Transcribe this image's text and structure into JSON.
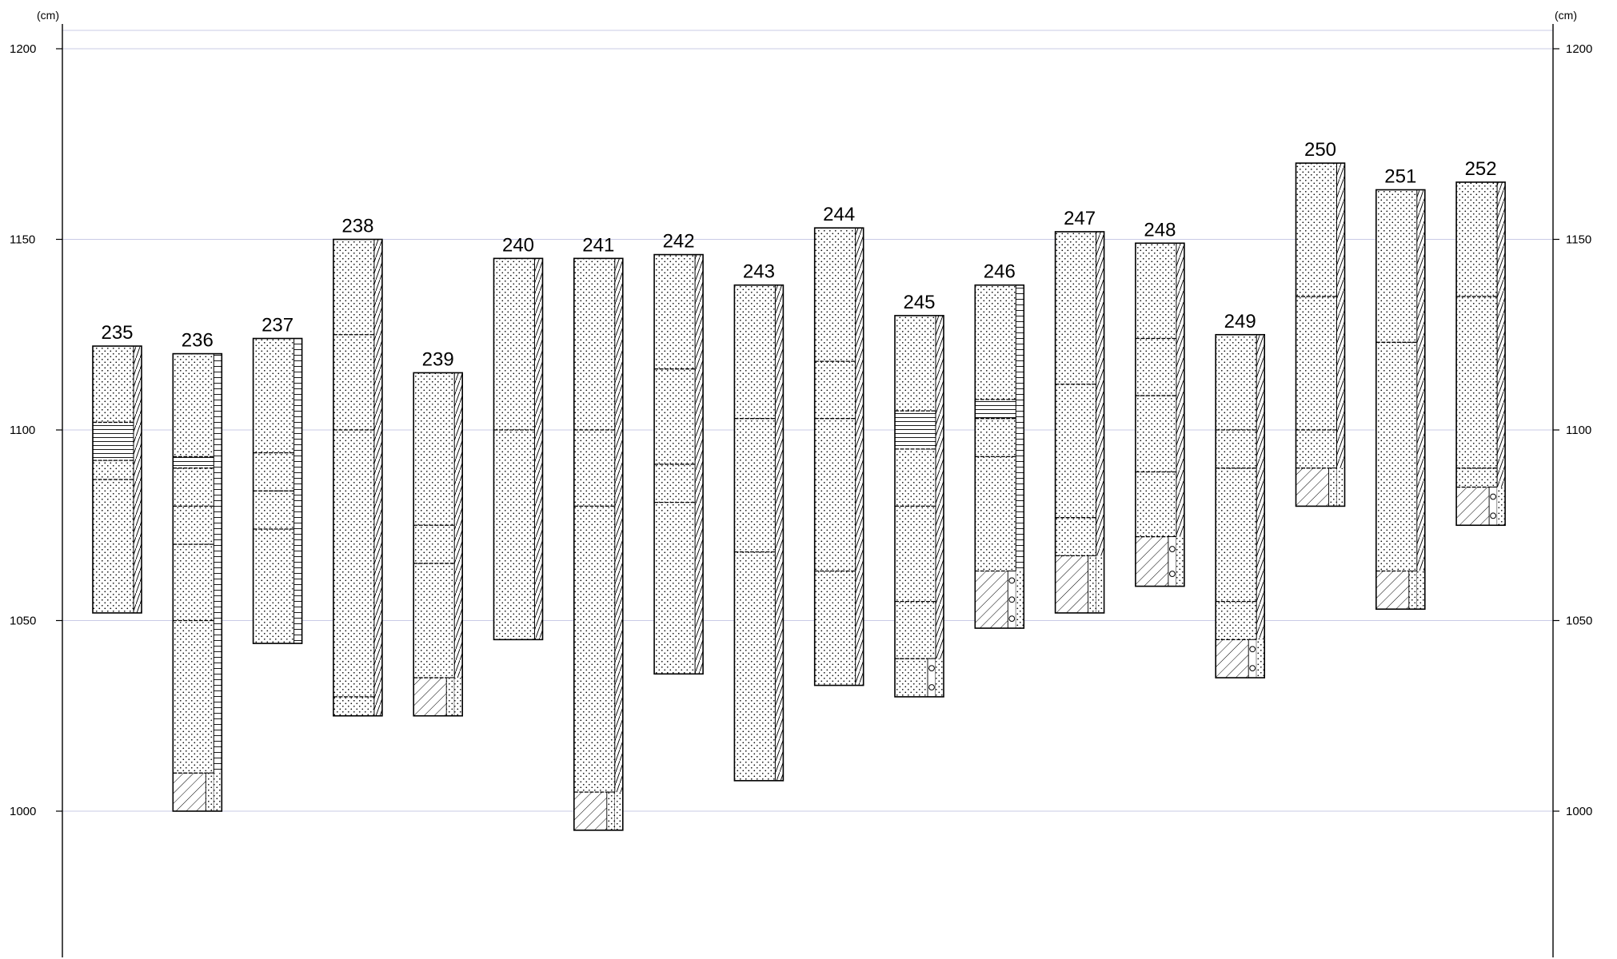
{
  "diagram": {
    "unit_left": "(cm)",
    "unit_right": "(cm)",
    "depth_range": [
      960,
      1205
    ],
    "ticks": [
      1200,
      1150,
      1100,
      1050,
      1000
    ],
    "colors": {
      "grid": "#c9cbe6",
      "axis": "#000000",
      "outline": "#000000",
      "background": "#ffffff"
    },
    "layer_patterns": [
      "fine-dots",
      "horizontal-lines",
      "diagonal-hatch",
      "circles"
    ],
    "cores": [
      {
        "label": "235",
        "top": 1122,
        "bottom": 1052,
        "side": "diagonal-hatch",
        "layers": [
          {
            "top": 1122,
            "bottom": 1102,
            "fill": "fine-dots"
          },
          {
            "top": 1102,
            "bottom": 1092,
            "fill": "horizontal-lines"
          },
          {
            "top": 1092,
            "bottom": 1087,
            "fill": "fine-dots",
            "band": 1087
          },
          {
            "top": 1087,
            "bottom": 1052,
            "fill": "fine-dots"
          }
        ]
      },
      {
        "label": "236",
        "top": 1120,
        "bottom": 1000,
        "side": "horizontal-lines",
        "layers": [
          {
            "top": 1120,
            "bottom": 1093,
            "fill": "fine-dots"
          },
          {
            "top": 1093,
            "bottom": 1090,
            "fill": "horizontal-lines"
          },
          {
            "top": 1090,
            "bottom": 1080,
            "fill": "fine-dots"
          },
          {
            "top": 1080,
            "bottom": 1070,
            "fill": "fine-dots"
          },
          {
            "top": 1070,
            "bottom": 1050,
            "fill": "fine-dots"
          },
          {
            "top": 1050,
            "bottom": 1010,
            "fill": "fine-dots"
          },
          {
            "top": 1010,
            "bottom": 1000,
            "fill": "diagonal-hatch"
          }
        ]
      },
      {
        "label": "237",
        "top": 1124,
        "bottom": 1044,
        "side": "horizontal-lines",
        "layers": [
          {
            "top": 1124,
            "bottom": 1094,
            "fill": "fine-dots"
          },
          {
            "top": 1094,
            "bottom": 1084,
            "fill": "fine-dots"
          },
          {
            "top": 1084,
            "bottom": 1074,
            "fill": "fine-dots"
          },
          {
            "top": 1074,
            "bottom": 1044,
            "fill": "fine-dots"
          }
        ]
      },
      {
        "label": "238",
        "top": 1150,
        "bottom": 1025,
        "side": "diagonal-hatch",
        "layers": [
          {
            "top": 1150,
            "bottom": 1125,
            "fill": "fine-dots"
          },
          {
            "top": 1125,
            "bottom": 1100,
            "fill": "fine-dots"
          },
          {
            "top": 1100,
            "bottom": 1030,
            "fill": "fine-dots"
          },
          {
            "top": 1030,
            "bottom": 1025,
            "fill": "fine-dots"
          }
        ]
      },
      {
        "label": "239",
        "top": 1115,
        "bottom": 1025,
        "side": "diagonal-hatch",
        "layers": [
          {
            "top": 1115,
            "bottom": 1075,
            "fill": "fine-dots"
          },
          {
            "top": 1075,
            "bottom": 1065,
            "fill": "fine-dots"
          },
          {
            "top": 1065,
            "bottom": 1035,
            "fill": "fine-dots"
          },
          {
            "top": 1035,
            "bottom": 1025,
            "fill": "diagonal-hatch"
          }
        ]
      },
      {
        "label": "240",
        "top": 1145,
        "bottom": 1045,
        "side": "diagonal-hatch",
        "layers": [
          {
            "top": 1145,
            "bottom": 1100,
            "fill": "fine-dots"
          },
          {
            "top": 1100,
            "bottom": 1045,
            "fill": "fine-dots"
          }
        ]
      },
      {
        "label": "241",
        "top": 1145,
        "bottom": 995,
        "side": "diagonal-hatch",
        "layers": [
          {
            "top": 1145,
            "bottom": 1100,
            "fill": "fine-dots"
          },
          {
            "top": 1100,
            "bottom": 1080,
            "fill": "fine-dots"
          },
          {
            "top": 1080,
            "bottom": 1005,
            "fill": "fine-dots"
          },
          {
            "top": 1005,
            "bottom": 995,
            "fill": "diagonal-hatch"
          }
        ]
      },
      {
        "label": "242",
        "top": 1146,
        "bottom": 1036,
        "side": "diagonal-hatch",
        "layers": [
          {
            "top": 1146,
            "bottom": 1116,
            "fill": "fine-dots"
          },
          {
            "top": 1116,
            "bottom": 1091,
            "fill": "fine-dots"
          },
          {
            "top": 1091,
            "bottom": 1081,
            "fill": "fine-dots"
          },
          {
            "top": 1081,
            "bottom": 1036,
            "fill": "fine-dots"
          }
        ]
      },
      {
        "label": "243",
        "top": 1138,
        "bottom": 1008,
        "side": "diagonal-hatch",
        "layers": [
          {
            "top": 1138,
            "bottom": 1103,
            "fill": "fine-dots"
          },
          {
            "top": 1103,
            "bottom": 1068,
            "fill": "fine-dots"
          },
          {
            "top": 1068,
            "bottom": 1008,
            "fill": "fine-dots"
          }
        ]
      },
      {
        "label": "244",
        "top": 1153,
        "bottom": 1033,
        "side": "diagonal-hatch",
        "layers": [
          {
            "top": 1153,
            "bottom": 1118,
            "fill": "fine-dots"
          },
          {
            "top": 1118,
            "bottom": 1103,
            "fill": "fine-dots"
          },
          {
            "top": 1103,
            "bottom": 1063,
            "fill": "fine-dots"
          },
          {
            "top": 1063,
            "bottom": 1033,
            "fill": "fine-dots"
          }
        ]
      },
      {
        "label": "245",
        "top": 1130,
        "bottom": 1030,
        "side": "diagonal-hatch",
        "layers": [
          {
            "top": 1130,
            "bottom": 1105,
            "fill": "fine-dots"
          },
          {
            "top": 1105,
            "bottom": 1095,
            "fill": "horizontal-lines"
          },
          {
            "top": 1095,
            "bottom": 1080,
            "fill": "fine-dots"
          },
          {
            "top": 1080,
            "bottom": 1055,
            "fill": "fine-dots"
          },
          {
            "top": 1055,
            "bottom": 1040,
            "fill": "fine-dots"
          },
          {
            "top": 1040,
            "bottom": 1030,
            "fill": "fine-dots",
            "circles": true
          }
        ]
      },
      {
        "label": "246",
        "top": 1138,
        "bottom": 1048,
        "side": "horizontal-lines",
        "layers": [
          {
            "top": 1138,
            "bottom": 1108,
            "fill": "fine-dots"
          },
          {
            "top": 1108,
            "bottom": 1103,
            "fill": "horizontal-lines"
          },
          {
            "top": 1103,
            "bottom": 1093,
            "fill": "fine-dots"
          },
          {
            "top": 1093,
            "bottom": 1063,
            "fill": "fine-dots"
          },
          {
            "top": 1063,
            "bottom": 1048,
            "fill": "diagonal-hatch",
            "circles": true
          }
        ]
      },
      {
        "label": "247",
        "top": 1152,
        "bottom": 1052,
        "side": "diagonal-hatch",
        "layers": [
          {
            "top": 1152,
            "bottom": 1112,
            "fill": "fine-dots"
          },
          {
            "top": 1112,
            "bottom": 1077,
            "fill": "fine-dots"
          },
          {
            "top": 1077,
            "bottom": 1067,
            "fill": "fine-dots"
          },
          {
            "top": 1067,
            "bottom": 1052,
            "fill": "diagonal-hatch"
          }
        ]
      },
      {
        "label": "248",
        "top": 1149,
        "bottom": 1059,
        "side": "diagonal-hatch",
        "layers": [
          {
            "top": 1149,
            "bottom": 1124,
            "fill": "fine-dots"
          },
          {
            "top": 1124,
            "bottom": 1109,
            "fill": "fine-dots"
          },
          {
            "top": 1109,
            "bottom": 1089,
            "fill": "fine-dots"
          },
          {
            "top": 1089,
            "bottom": 1072,
            "fill": "fine-dots"
          },
          {
            "top": 1072,
            "bottom": 1059,
            "fill": "diagonal-hatch",
            "circles": true
          }
        ]
      },
      {
        "label": "249",
        "top": 1125,
        "bottom": 1035,
        "side": "diagonal-hatch",
        "layers": [
          {
            "top": 1125,
            "bottom": 1100,
            "fill": "fine-dots"
          },
          {
            "top": 1100,
            "bottom": 1090,
            "fill": "fine-dots"
          },
          {
            "top": 1090,
            "bottom": 1055,
            "fill": "fine-dots"
          },
          {
            "top": 1055,
            "bottom": 1045,
            "fill": "fine-dots"
          },
          {
            "top": 1045,
            "bottom": 1035,
            "fill": "diagonal-hatch",
            "circles": true
          }
        ]
      },
      {
        "label": "250",
        "top": 1170,
        "bottom": 1080,
        "side": "diagonal-hatch",
        "layers": [
          {
            "top": 1170,
            "bottom": 1135,
            "fill": "fine-dots"
          },
          {
            "top": 1135,
            "bottom": 1100,
            "fill": "fine-dots"
          },
          {
            "top": 1100,
            "bottom": 1090,
            "fill": "fine-dots"
          },
          {
            "top": 1090,
            "bottom": 1080,
            "fill": "diagonal-hatch"
          }
        ]
      },
      {
        "label": "251",
        "top": 1163,
        "bottom": 1053,
        "side": "diagonal-hatch",
        "layers": [
          {
            "top": 1163,
            "bottom": 1123,
            "fill": "fine-dots"
          },
          {
            "top": 1123,
            "bottom": 1063,
            "fill": "fine-dots"
          },
          {
            "top": 1063,
            "bottom": 1053,
            "fill": "diagonal-hatch"
          }
        ]
      },
      {
        "label": "252",
        "top": 1165,
        "bottom": 1075,
        "side": "diagonal-hatch",
        "layers": [
          {
            "top": 1165,
            "bottom": 1135,
            "fill": "fine-dots"
          },
          {
            "top": 1135,
            "bottom": 1090,
            "fill": "fine-dots"
          },
          {
            "top": 1090,
            "bottom": 1085,
            "fill": "fine-dots"
          },
          {
            "top": 1085,
            "bottom": 1075,
            "fill": "diagonal-hatch",
            "circles": true
          }
        ]
      }
    ]
  }
}
